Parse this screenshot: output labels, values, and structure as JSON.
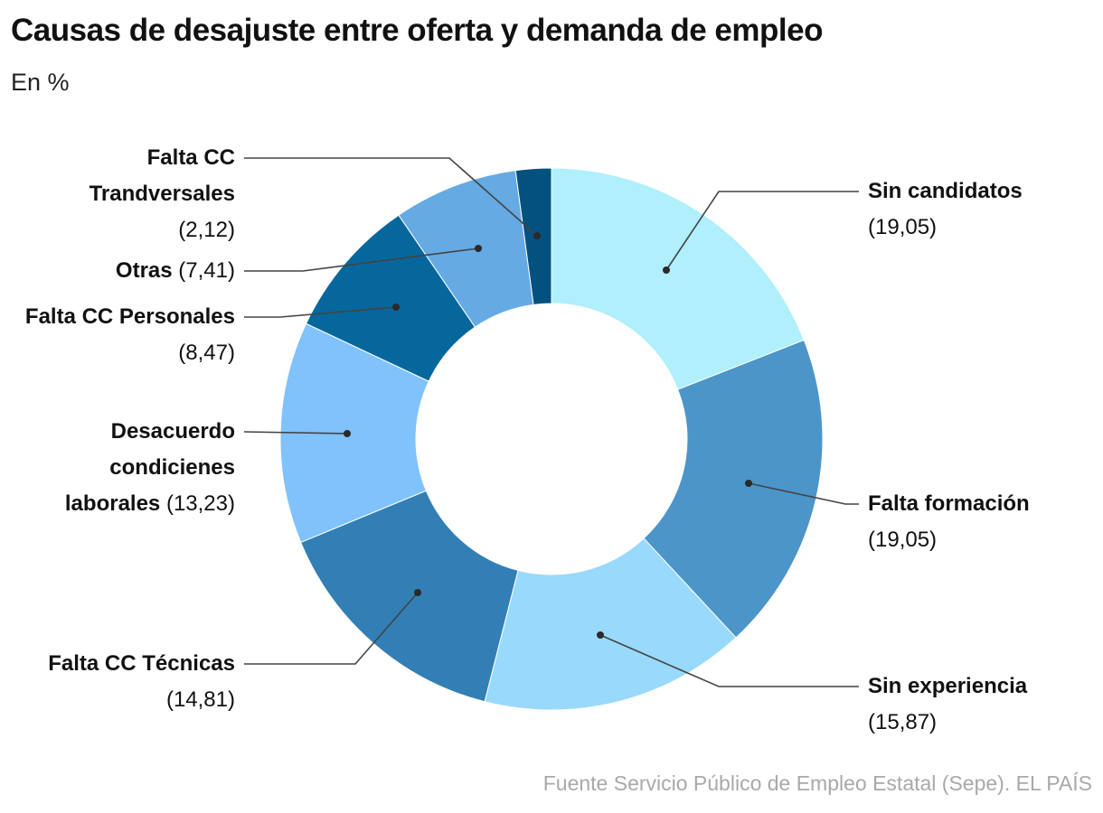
{
  "title": "Causas de desajuste entre oferta y demanda de empleo",
  "subtitle": "En %",
  "source": "Fuente Servicio Público de Empleo Estatal (Sepe). EL PAÍS",
  "chart_data": {
    "type": "pie",
    "donut": true,
    "title": "Causas de desajuste entre oferta y demanda de empleo",
    "unit": "En %",
    "slices": [
      {
        "label": "Sin candidatos",
        "value": 19.05,
        "value_text": "(19,05)",
        "color": "#b0effc"
      },
      {
        "label": "Falta formación",
        "value": 19.05,
        "value_text": "(19,05)",
        "color": "#4b95c9"
      },
      {
        "label": "Sin experiencia",
        "value": 15.87,
        "value_text": "(15,87)",
        "color": "#99d9fc"
      },
      {
        "label": "Falta CC Técnicas",
        "value": 14.81,
        "value_text": "(14,81)",
        "color": "#327fb5"
      },
      {
        "label": "Desacuerdo condicienes laborales",
        "value": 13.23,
        "value_text": "(13,23)",
        "color": "#80c2fc"
      },
      {
        "label": "Falta CC Personales",
        "value": 8.47,
        "value_text": "(8,47)",
        "color": "#06679c"
      },
      {
        "label": "Otras",
        "value": 7.41,
        "value_text": "(7,41)",
        "color": "#66aae3"
      },
      {
        "label": "Falta CC Trandversales",
        "value": 2.12,
        "value_text": "(2,12)",
        "color": "#03517f"
      }
    ]
  }
}
